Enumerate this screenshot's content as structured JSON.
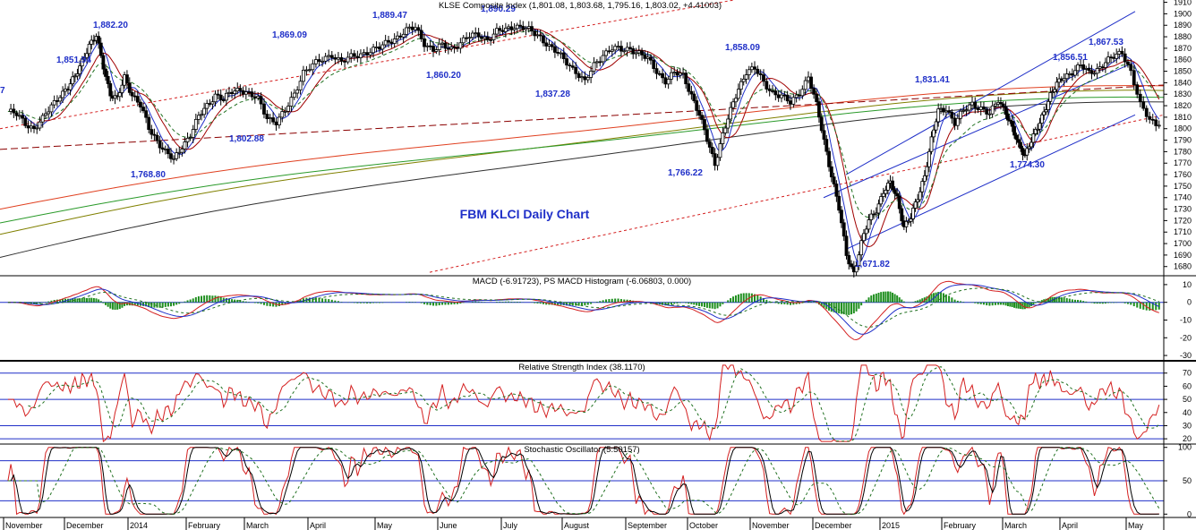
{
  "chart_data": {
    "type": "line",
    "title": "FBM KLCI Daily Chart",
    "price_panel": {
      "header": "KLSE Composite Index (1,801.08, 1,803.68, 1,795.16, 1,803.02, +4.41003)",
      "yticks": [
        1910,
        1900,
        1890,
        1880,
        1870,
        1860,
        1850,
        1840,
        1830,
        1820,
        1810,
        1800,
        1790,
        1780,
        1770,
        1760,
        1750,
        1740,
        1730,
        1720,
        1710,
        1700,
        1690,
        1680
      ],
      "ylim": [
        1672,
        1912
      ],
      "closes_by_month": [
        {
          "month": "Nov 2013",
          "close": [
            1815,
            1812,
            1805,
            1800,
            1808,
            1820,
            1830
          ]
        },
        {
          "month": "Dec 2013",
          "close": [
            1835,
            1845,
            1860,
            1872,
            1880,
            1855,
            1830,
            1825,
            1845
          ]
        },
        {
          "month": "Jan 2014",
          "close": [
            1830,
            1820,
            1800,
            1790,
            1780,
            1772,
            1785
          ]
        },
        {
          "month": "Feb 2014",
          "close": [
            1795,
            1810,
            1820,
            1830,
            1825,
            1832,
            1835
          ]
        },
        {
          "month": "Mar 2014",
          "close": [
            1830,
            1825,
            1810,
            1806,
            1815,
            1830,
            1850
          ]
        },
        {
          "month": "Apr 2014",
          "close": [
            1855,
            1860,
            1865,
            1858,
            1862,
            1865,
            1868
          ]
        },
        {
          "month": "May 2014",
          "close": [
            1870,
            1876,
            1880,
            1885,
            1888,
            1875,
            1868
          ]
        },
        {
          "month": "Jun 2014",
          "close": [
            1872,
            1870,
            1875,
            1880,
            1882,
            1878,
            1884
          ]
        },
        {
          "month": "Jul 2014",
          "close": [
            1886,
            1890,
            1888,
            1884,
            1880,
            1872,
            1865
          ]
        },
        {
          "month": "Aug 2014",
          "close": [
            1858,
            1850,
            1840,
            1855,
            1865,
            1870,
            1868
          ]
        },
        {
          "month": "Sep 2014",
          "close": [
            1870,
            1866,
            1860,
            1850,
            1842,
            1848,
            1846
          ]
        },
        {
          "month": "Oct 2014",
          "close": [
            1830,
            1812,
            1790,
            1770,
            1795,
            1815,
            1835,
            1850
          ]
        },
        {
          "month": "Nov 2014",
          "close": [
            1852,
            1840,
            1832,
            1828,
            1822,
            1832,
            1845
          ]
        },
        {
          "month": "Dec 2014",
          "close": [
            1820,
            1790,
            1760,
            1730,
            1690,
            1675,
            1700,
            1720,
            1730
          ]
        },
        {
          "month": "Jan 2015",
          "close": [
            1745,
            1752,
            1740,
            1715,
            1722,
            1740,
            1760,
            1790,
            1815
          ]
        },
        {
          "month": "Feb 2015",
          "close": [
            1818,
            1805,
            1815,
            1822,
            1818,
            1812,
            1825
          ]
        },
        {
          "month": "Mar 2015",
          "close": [
            1815,
            1800,
            1785,
            1778,
            1790,
            1800,
            1815,
            1830,
            1838
          ]
        },
        {
          "month": "Apr 2015",
          "close": [
            1845,
            1850,
            1855,
            1848,
            1852,
            1858,
            1862,
            1867
          ]
        },
        {
          "month": "May 2015",
          "close": [
            1850,
            1820,
            1808,
            1803
          ]
        }
      ],
      "annotations": [
        {
          "label": "1,851.94"
        },
        {
          "label": "1,882.20"
        },
        {
          "label": "1,768.80"
        },
        {
          "label": "1,869.09"
        },
        {
          "label": "1,802.88"
        },
        {
          "label": "1,889.47"
        },
        {
          "label": "1,860.20"
        },
        {
          "label": "1,890.29"
        },
        {
          "label": "1,837.28"
        },
        {
          "label": "1,858.09"
        },
        {
          "label": "1,766.22"
        },
        {
          "label": "1,671.82"
        },
        {
          "label": "1,831.41"
        },
        {
          "label": "1,856.51"
        },
        {
          "label": "1,774.30"
        },
        {
          "label": "1,867.53"
        },
        {
          "label": "7"
        }
      ]
    },
    "macd_panel": {
      "title": "MACD (-6.91723), PS MACD Histogram (-6.06803, 0.000)",
      "yticks": [
        10,
        0,
        -10,
        -20,
        -30
      ],
      "ylim": [
        -33,
        15
      ]
    },
    "rsi_panel": {
      "title": "Relative Strength Index (38.1170)",
      "yticks": [
        70,
        60,
        50,
        40,
        30,
        20
      ],
      "ylim": [
        16,
        78
      ],
      "levels": [
        70,
        50,
        30,
        20
      ]
    },
    "stoch_panel": {
      "title": "Stochastic Oscillator (5.50157)",
      "yticks": [
        100,
        50,
        0
      ],
      "ylim": [
        -5,
        105
      ],
      "levels": [
        80,
        50,
        20
      ]
    },
    "x_labels": [
      "November",
      "December",
      "2014",
      "February",
      "March",
      "April",
      "May",
      "June",
      "July",
      "August",
      "September",
      "October",
      "November",
      "December",
      "2015",
      "February",
      "March",
      "April",
      "May"
    ]
  },
  "colors": {
    "blue": "#1f2fc8",
    "red": "#d42020",
    "green": "#1f8f1f",
    "darkred": "#8b0000",
    "olive": "#6b6b00",
    "grey": "#444444",
    "hist_up": "#1f8f1f",
    "hist_down": "#1f8f1f"
  }
}
